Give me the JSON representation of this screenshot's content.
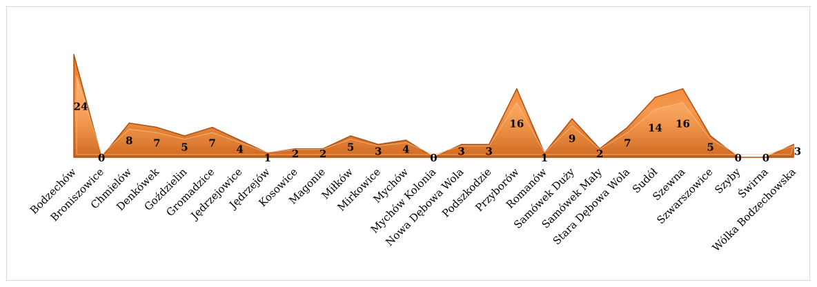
{
  "chart_data": {
    "type": "area",
    "title": "",
    "xlabel": "",
    "ylabel": "",
    "ylim": [
      0,
      24
    ],
    "grid": false,
    "legend": "none",
    "colors": {
      "fill": "#f08c3c",
      "edge": "#b04e0e",
      "highlight": "#ffc38a",
      "frame": "#d9d9d9"
    },
    "categories": [
      "Bodzechów",
      "Broniszowice",
      "Chmielów",
      "Denkówek",
      "Goździelin",
      "Gromadzice",
      "Jędrzejowice",
      "Jędrzejów",
      "Kosowice",
      "Magonie",
      "Miłków",
      "Mirkowice",
      "Mychów",
      "Mychów Kolonia",
      "Nowa Dębowa Wola",
      "Podszkodzie",
      "Przyborów",
      "Romanów",
      "Samówek Duży",
      "Samówek Mały",
      "Stara Dębowa Wola",
      "Sudół",
      "Szewna",
      "Szwarszowice",
      "Szyby",
      "Świrna",
      "Wólka Bodzechowska"
    ],
    "values": [
      24,
      0,
      8,
      7,
      5,
      7,
      4,
      1,
      2,
      2,
      5,
      3,
      4,
      0,
      3,
      3,
      16,
      1,
      9,
      2,
      7,
      14,
      16,
      5,
      0,
      0,
      3
    ]
  }
}
